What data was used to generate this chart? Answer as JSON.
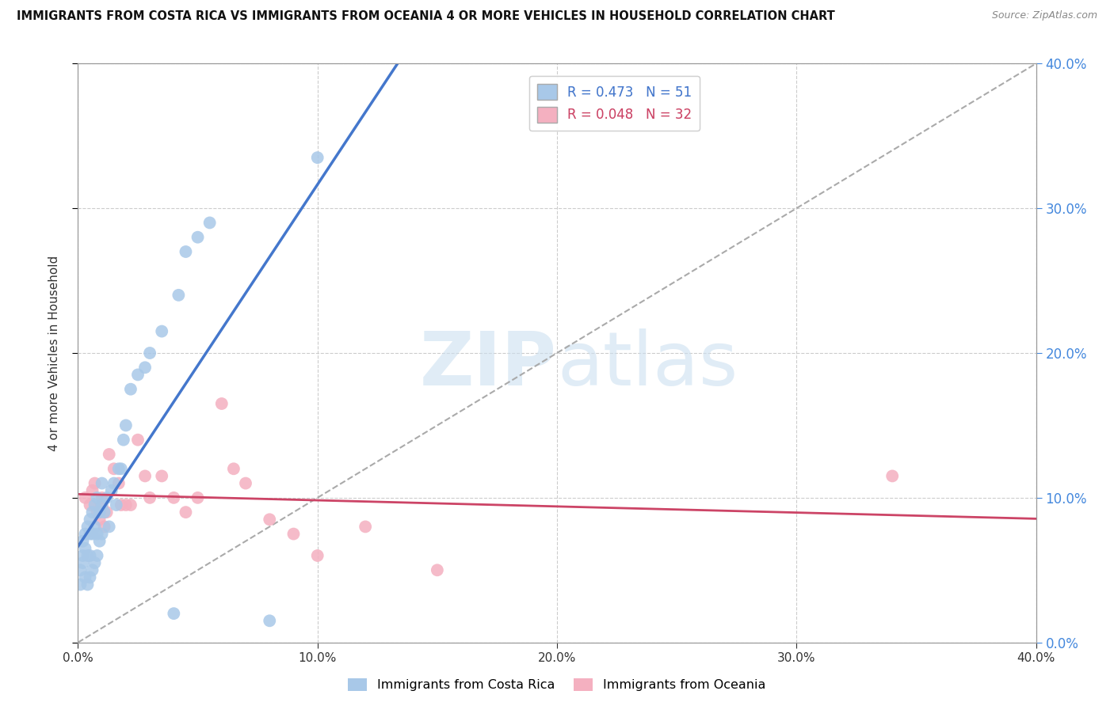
{
  "title": "IMMIGRANTS FROM COSTA RICA VS IMMIGRANTS FROM OCEANIA 4 OR MORE VEHICLES IN HOUSEHOLD CORRELATION CHART",
  "source": "Source: ZipAtlas.com",
  "ylabel": "4 or more Vehicles in Household",
  "xlim": [
    0.0,
    0.4
  ],
  "ylim": [
    0.0,
    0.4
  ],
  "xticks": [
    0.0,
    0.1,
    0.2,
    0.3,
    0.4
  ],
  "yticks": [
    0.0,
    0.1,
    0.2,
    0.3,
    0.4
  ],
  "background_color": "#ffffff",
  "grid_color": "#cccccc",
  "costa_rica_color": "#a8c8e8",
  "oceania_color": "#f4b0c0",
  "costa_rica_line_color": "#4477cc",
  "oceania_line_color": "#cc4466",
  "diagonal_color": "#aaaaaa",
  "R_costa_rica": 0.473,
  "N_costa_rica": 51,
  "R_oceania": 0.048,
  "N_oceania": 32,
  "costa_rica_x": [
    0.001,
    0.001,
    0.002,
    0.002,
    0.002,
    0.003,
    0.003,
    0.003,
    0.004,
    0.004,
    0.004,
    0.005,
    0.005,
    0.005,
    0.005,
    0.006,
    0.006,
    0.006,
    0.007,
    0.007,
    0.007,
    0.008,
    0.008,
    0.008,
    0.009,
    0.009,
    0.01,
    0.01,
    0.01,
    0.011,
    0.012,
    0.013,
    0.014,
    0.015,
    0.016,
    0.017,
    0.018,
    0.019,
    0.02,
    0.022,
    0.025,
    0.028,
    0.03,
    0.035,
    0.04,
    0.042,
    0.045,
    0.05,
    0.055,
    0.08,
    0.1
  ],
  "costa_rica_y": [
    0.04,
    0.05,
    0.055,
    0.06,
    0.07,
    0.045,
    0.065,
    0.075,
    0.04,
    0.06,
    0.08,
    0.045,
    0.06,
    0.075,
    0.085,
    0.05,
    0.075,
    0.09,
    0.055,
    0.08,
    0.095,
    0.06,
    0.075,
    0.1,
    0.07,
    0.09,
    0.075,
    0.095,
    0.11,
    0.09,
    0.1,
    0.08,
    0.105,
    0.11,
    0.095,
    0.12,
    0.12,
    0.14,
    0.15,
    0.175,
    0.185,
    0.19,
    0.2,
    0.215,
    0.02,
    0.24,
    0.27,
    0.28,
    0.29,
    0.015,
    0.335
  ],
  "oceania_x": [
    0.003,
    0.005,
    0.006,
    0.007,
    0.008,
    0.009,
    0.01,
    0.01,
    0.011,
    0.012,
    0.013,
    0.015,
    0.017,
    0.018,
    0.02,
    0.022,
    0.025,
    0.028,
    0.03,
    0.035,
    0.04,
    0.045,
    0.05,
    0.06,
    0.065,
    0.07,
    0.08,
    0.09,
    0.1,
    0.12,
    0.15,
    0.34
  ],
  "oceania_y": [
    0.1,
    0.095,
    0.105,
    0.11,
    0.09,
    0.085,
    0.095,
    0.1,
    0.08,
    0.09,
    0.13,
    0.12,
    0.11,
    0.095,
    0.095,
    0.095,
    0.14,
    0.115,
    0.1,
    0.115,
    0.1,
    0.09,
    0.1,
    0.165,
    0.12,
    0.11,
    0.085,
    0.075,
    0.06,
    0.08,
    0.05,
    0.115
  ],
  "watermark_zip": "ZIP",
  "watermark_atlas": "atlas"
}
